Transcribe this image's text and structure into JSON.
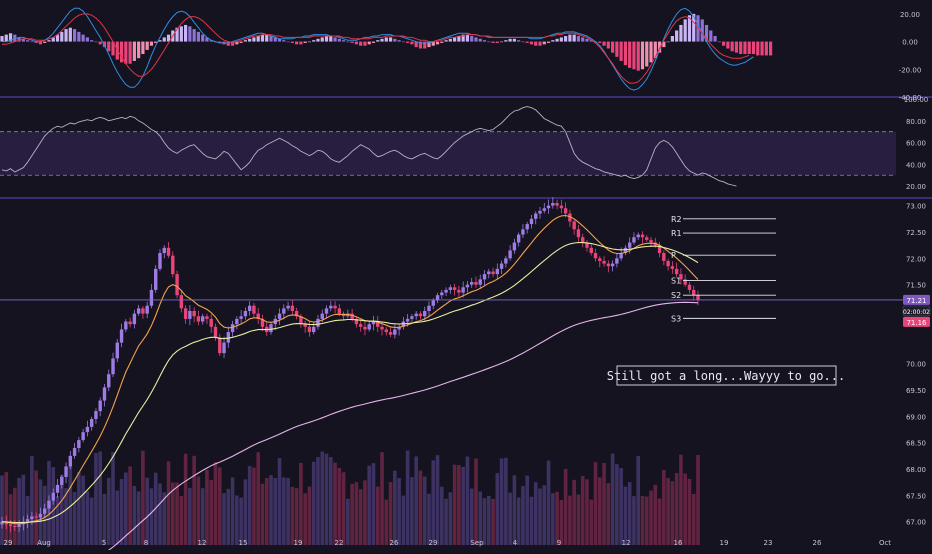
{
  "chart_data": [
    {
      "panel": "macd",
      "type": "bar",
      "y_ticks": [
        "20.00",
        "0.00",
        "-20.00",
        "-40.00"
      ],
      "ylim": [
        -40,
        30
      ],
      "histogram": [
        4,
        5,
        6,
        5,
        3,
        2,
        1,
        0,
        -1,
        -2,
        -1,
        1,
        3,
        5,
        7,
        9,
        10,
        9,
        7,
        5,
        3,
        1,
        0,
        -2,
        -4,
        -7,
        -10,
        -13,
        -15,
        -16,
        -16,
        -14,
        -12,
        -9,
        -6,
        -3,
        -1,
        1,
        3,
        5,
        8,
        10,
        11,
        12,
        11,
        9,
        7,
        5,
        3,
        1,
        0,
        -1,
        -2,
        -3,
        -3,
        -2,
        -1,
        1,
        2,
        3,
        4,
        5,
        5,
        4,
        3,
        2,
        1,
        0,
        -1,
        -2,
        -2,
        -1,
        0,
        1,
        2,
        3,
        4,
        4,
        3,
        2,
        1,
        0,
        -1,
        -2,
        -3,
        -3,
        -2,
        -1,
        1,
        2,
        3,
        3,
        2,
        1,
        0,
        -1,
        -2,
        -4,
        -5,
        -5,
        -4,
        -3,
        -2,
        -1,
        1,
        2,
        3,
        4,
        5,
        5,
        4,
        3,
        2,
        1,
        0,
        -1,
        -1,
        0,
        1,
        2,
        2,
        1,
        0,
        -1,
        -2,
        -3,
        -3,
        -2,
        -1,
        1,
        2,
        3,
        4,
        5,
        5,
        4,
        3,
        2,
        1,
        0,
        -1,
        -3,
        -5,
        -8,
        -11,
        -14,
        -17,
        -19,
        -20,
        -21,
        -20,
        -18,
        -15,
        -12,
        -8,
        -4,
        0,
        4,
        8,
        12,
        16,
        19,
        20,
        19,
        16,
        12,
        8,
        4,
        0,
        -3,
        -5,
        -7,
        -8,
        -9,
        -9,
        -9,
        -9,
        -10,
        -10,
        -10,
        -10
      ],
      "macd_line": [
        0,
        0,
        1,
        2,
        3,
        3,
        2,
        1,
        0,
        0,
        1,
        3,
        6,
        10,
        14,
        18,
        22,
        24,
        24,
        22,
        18,
        13,
        8,
        3,
        -3,
        -9,
        -16,
        -22,
        -27,
        -31,
        -33,
        -33,
        -30,
        -25,
        -18,
        -10,
        -3,
        3,
        9,
        14,
        18,
        21,
        22,
        21,
        18,
        14,
        10,
        6,
        3,
        1,
        0,
        -1,
        -1,
        -1,
        0,
        1,
        2,
        3,
        4,
        5,
        6,
        6,
        5,
        4,
        3,
        2,
        2,
        2,
        2,
        3,
        3,
        4,
        4,
        5,
        5,
        5,
        5,
        4,
        4,
        3,
        2,
        1,
        1,
        1,
        2,
        3,
        3,
        4,
        4,
        5,
        5,
        5,
        4,
        4,
        3,
        2,
        1,
        0,
        -1,
        -1,
        -1,
        0,
        1,
        2,
        3,
        4,
        5,
        6,
        6,
        6,
        5,
        5,
        4,
        4,
        3,
        3,
        3,
        3,
        3,
        3,
        3,
        3,
        3,
        3,
        2,
        2,
        2,
        3,
        4,
        5,
        6,
        6,
        7,
        7,
        7,
        6,
        5,
        4,
        2,
        0,
        -3,
        -7,
        -12,
        -17,
        -22,
        -27,
        -31,
        -34,
        -35,
        -34,
        -31,
        -27,
        -21,
        -14,
        -6,
        2,
        9,
        15,
        20,
        23,
        24,
        22,
        18,
        12,
        6,
        0,
        -5,
        -9,
        -12,
        -14,
        -16,
        -17,
        -17,
        -16,
        -15,
        -13,
        -11
      ],
      "signal_line": [
        -2,
        -2,
        -1,
        0,
        1,
        2,
        2,
        2,
        1,
        1,
        1,
        2,
        3,
        5,
        8,
        11,
        14,
        17,
        19,
        20,
        20,
        19,
        17,
        14,
        10,
        5,
        0,
        -6,
        -11,
        -16,
        -20,
        -23,
        -25,
        -25,
        -23,
        -20,
        -16,
        -11,
        -6,
        -1,
        4,
        9,
        13,
        16,
        18,
        18,
        17,
        15,
        12,
        9,
        6,
        3,
        1,
        0,
        -1,
        0,
        1,
        2,
        3,
        4,
        4,
        5,
        5,
        5,
        4,
        4,
        3,
        3,
        3,
        3,
        3,
        3,
        3,
        4,
        4,
        4,
        4,
        4,
        4,
        4,
        3,
        3,
        2,
        2,
        2,
        2,
        2,
        3,
        3,
        3,
        4,
        4,
        4,
        4,
        4,
        3,
        3,
        2,
        1,
        1,
        0,
        0,
        1,
        1,
        2,
        3,
        3,
        4,
        4,
        5,
        5,
        5,
        4,
        4,
        4,
        3,
        3,
        3,
        3,
        3,
        3,
        3,
        3,
        3,
        3,
        3,
        3,
        3,
        4,
        4,
        5,
        5,
        6,
        6,
        6,
        5,
        4,
        3,
        1,
        -1,
        -4,
        -8,
        -12,
        -16,
        -21,
        -25,
        -28,
        -30,
        -30,
        -29,
        -26,
        -22,
        -17,
        -11,
        -5,
        1,
        6,
        11,
        15,
        17,
        18,
        17,
        14,
        10,
        6,
        2,
        -2,
        -5,
        -8,
        -10,
        -11,
        -12,
        -12,
        -12,
        -11,
        -10
      ]
    },
    {
      "panel": "rsi",
      "type": "line",
      "y_ticks": [
        "100.00",
        "80.00",
        "60.00",
        "40.00",
        "20.00"
      ],
      "ylim": [
        10,
        100
      ],
      "band": [
        30,
        70
      ],
      "values": [
        35,
        34,
        36,
        33,
        35,
        37,
        42,
        48,
        54,
        60,
        66,
        70,
        73,
        75,
        74,
        76,
        78,
        77,
        79,
        80,
        81,
        80,
        82,
        83,
        82,
        80,
        81,
        82,
        83,
        82,
        84,
        83,
        80,
        78,
        75,
        72,
        70,
        66,
        60,
        55,
        52,
        50,
        53,
        55,
        57,
        58,
        54,
        50,
        47,
        46,
        45,
        48,
        52,
        50,
        45,
        40,
        35,
        38,
        42,
        48,
        53,
        55,
        58,
        60,
        62,
        64,
        62,
        60,
        57,
        55,
        52,
        50,
        48,
        50,
        53,
        52,
        49,
        45,
        43,
        42,
        45,
        48,
        52,
        55,
        58,
        56,
        54,
        50,
        47,
        48,
        50,
        52,
        53,
        51,
        48,
        46,
        45,
        47,
        49,
        50,
        48,
        46,
        45,
        48,
        52,
        56,
        60,
        63,
        66,
        68,
        70,
        72,
        73,
        72,
        71,
        72,
        75,
        78,
        82,
        86,
        89,
        90,
        92,
        93,
        92,
        90,
        86,
        82,
        80,
        78,
        76,
        75,
        70,
        60,
        50,
        45,
        42,
        40,
        38,
        36,
        35,
        33,
        32,
        31,
        30,
        29,
        30,
        28,
        27,
        28,
        30,
        35,
        45,
        55,
        60,
        62,
        60,
        56,
        50,
        44,
        38,
        34,
        32,
        30,
        32,
        31,
        29,
        27,
        25,
        24,
        22,
        21,
        20
      ],
      "line_color": "#b8b3c6"
    },
    {
      "panel": "price",
      "type": "candlestick",
      "y_ticks": [
        "73.00",
        "72.50",
        "72.00",
        "71.50",
        "71.00",
        "70.50",
        "70.00",
        "69.50",
        "69.00",
        "68.50",
        "68.00",
        "67.50",
        "67.00"
      ],
      "ylim": [
        66.9,
        73.05
      ],
      "x_ticks": [
        "29",
        "Aug",
        "5",
        "8",
        "12",
        "15",
        "19",
        "22",
        "26",
        "29",
        "Sep",
        "4",
        "9",
        "12",
        "16",
        "19",
        "23",
        "26",
        "Oct"
      ],
      "closes": [
        67.0,
        66.95,
        66.92,
        66.9,
        66.95,
        67.0,
        67.05,
        67.1,
        67.08,
        67.15,
        67.25,
        67.4,
        67.55,
        67.7,
        67.85,
        68.05,
        68.25,
        68.4,
        68.55,
        68.7,
        68.8,
        68.95,
        69.1,
        69.3,
        69.55,
        69.8,
        70.1,
        70.4,
        70.65,
        70.8,
        70.75,
        70.95,
        71.05,
        70.95,
        71.1,
        71.4,
        71.8,
        72.1,
        72.2,
        72.05,
        71.7,
        71.3,
        71.05,
        70.85,
        71.0,
        70.9,
        70.8,
        70.9,
        70.85,
        70.7,
        70.5,
        70.2,
        70.4,
        70.6,
        70.75,
        70.85,
        70.9,
        71.0,
        71.1,
        70.95,
        70.85,
        70.7,
        70.6,
        70.75,
        70.85,
        70.95,
        71.05,
        71.1,
        71.0,
        70.9,
        70.75,
        70.7,
        70.6,
        70.7,
        70.85,
        70.95,
        71.05,
        71.1,
        71.05,
        70.95,
        70.9,
        70.95,
        70.85,
        70.75,
        70.7,
        70.65,
        70.75,
        70.8,
        70.7,
        70.65,
        70.6,
        70.55,
        70.65,
        70.7,
        70.8,
        70.85,
        70.9,
        70.95,
        70.9,
        71.0,
        71.1,
        71.2,
        71.3,
        71.35,
        71.4,
        71.45,
        71.4,
        71.35,
        71.45,
        71.5,
        71.55,
        71.5,
        71.6,
        71.7,
        71.75,
        71.7,
        71.8,
        71.9,
        72.0,
        72.15,
        72.3,
        72.45,
        72.55,
        72.65,
        72.75,
        72.85,
        72.9,
        72.95,
        73.0,
        73.05,
        73.0,
        72.95,
        72.85,
        72.7,
        72.55,
        72.4,
        72.3,
        72.2,
        72.1,
        72.0,
        71.95,
        71.9,
        71.85,
        71.9,
        72.0,
        72.1,
        72.2,
        72.3,
        72.4,
        72.45,
        72.4,
        72.35,
        72.3,
        72.25,
        72.1,
        71.95,
        71.85,
        71.8,
        71.7,
        71.6,
        71.5,
        71.4,
        71.3,
        71.21
      ],
      "series": [
        {
          "name": "EMA fast",
          "color": "#f5a14c"
        },
        {
          "name": "EMA slow",
          "color": "#e8eea0"
        },
        {
          "name": "EMA long",
          "color": "#e7b3ea"
        }
      ],
      "pivot_levels": [
        {
          "label": "R2",
          "value": 72.75
        },
        {
          "label": "R1",
          "value": 72.48
        },
        {
          "label": "P",
          "value": 72.06
        },
        {
          "label": "S1",
          "value": 71.58
        },
        {
          "label": "S2",
          "value": 71.3
        },
        {
          "label": "S3",
          "value": 70.86
        }
      ],
      "price_tags": [
        {
          "text": "71.21",
          "sub": "",
          "color": "#7e57c2"
        },
        {
          "text": "02:00:02",
          "sub": "",
          "color": "#1e1d2c"
        },
        {
          "text": "71.16",
          "sub": "",
          "color": "#e9457a"
        }
      ],
      "annotation": "Still got a long...Wayyy to go..."
    }
  ],
  "colors": {
    "background": "#14131f",
    "up": "#9d7ce6",
    "down": "#e9457a",
    "separator": "#5e48c9",
    "axis_text": "#c7c4d4"
  }
}
